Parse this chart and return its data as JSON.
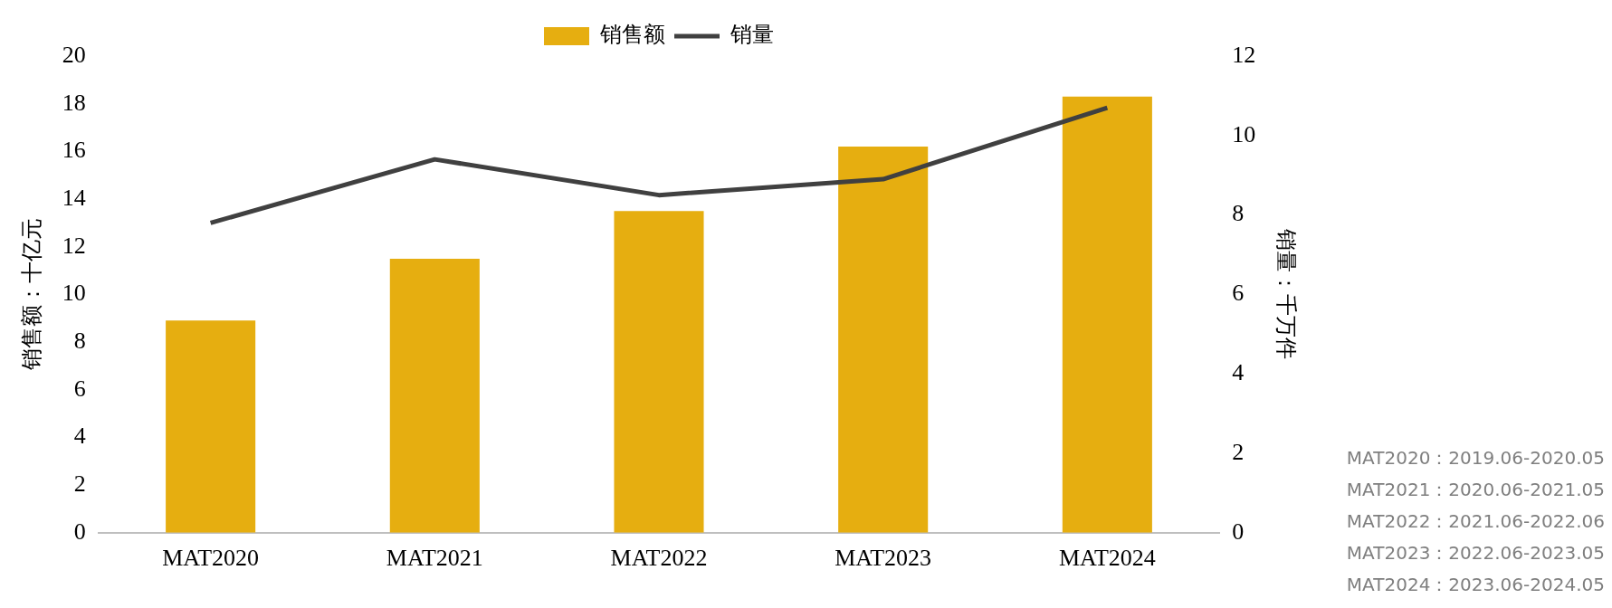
{
  "chart_data": {
    "type": "bar",
    "categories": [
      "MAT2020",
      "MAT2021",
      "MAT2022",
      "MAT2023",
      "MAT2024"
    ],
    "series": [
      {
        "name": "销售额",
        "color": "#e6ae10",
        "values": [
          8.9,
          11.5,
          13.5,
          16.2,
          18.3
        ]
      },
      {
        "name": "销量",
        "type": "line",
        "axis": "y2",
        "color": "#404040",
        "marker": "none",
        "values": [
          7.8,
          9.4,
          8.5,
          8.9,
          10.7
        ]
      }
    ],
    "ylabel": "销售额：十亿元",
    "y2label": "销量：千万件",
    "ylim": [
      0,
      20
    ],
    "yticks": [
      0,
      2,
      4,
      6,
      8,
      10,
      12,
      14,
      16,
      18,
      20
    ],
    "y2lim": [
      0,
      12
    ],
    "y2ticks": [
      0,
      2,
      4,
      6,
      8,
      10,
      12
    ],
    "grid": false,
    "legend": "top",
    "annotations": [
      "MAT2020：2019.06-2020.05",
      "MAT2021：2020.06-2021.05",
      "MAT2022：2021.06-2022.06",
      "MAT2023：2022.06-2023.05",
      "MAT2024：2023.06-2024.05"
    ]
  }
}
